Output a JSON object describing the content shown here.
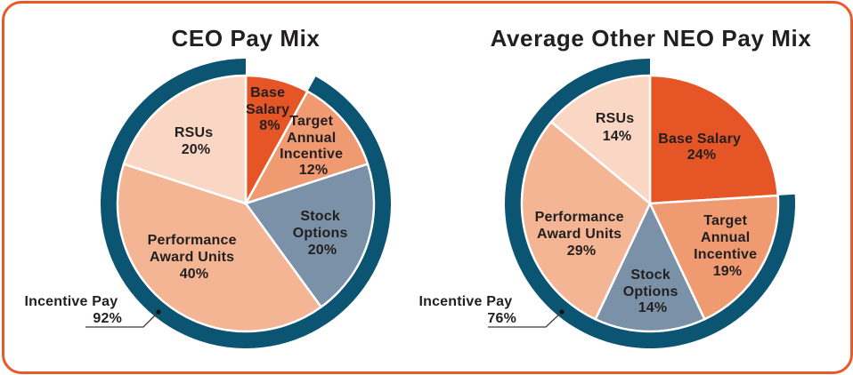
{
  "chart_data": [
    {
      "type": "pie",
      "title": "CEO Pay Mix",
      "categories": [
        "Base Salary",
        "Target Annual Incentive",
        "Stock Options",
        "Performance Award Units",
        "RSUs"
      ],
      "values": [
        8,
        12,
        20,
        40,
        20
      ],
      "unit": "%",
      "start_angle": "12 o'clock, clockwise",
      "annotations": [
        {
          "type": "outer-ring",
          "label": "Incentive Pay",
          "value": 92,
          "covers": [
            "Target Annual Incentive",
            "Stock Options",
            "Performance Award Units",
            "RSUs"
          ]
        }
      ]
    },
    {
      "type": "pie",
      "title": "Average Other NEO Pay Mix",
      "categories": [
        "Base Salary",
        "Target Annual Incentive",
        "Stock Options",
        "Performance Award Units",
        "RSUs"
      ],
      "values": [
        24,
        19,
        14,
        29,
        14
      ],
      "unit": "%",
      "start_angle": "12 o'clock, clockwise",
      "annotations": [
        {
          "type": "outer-ring",
          "label": "Incentive Pay",
          "value": 76,
          "covers": [
            "Target Annual Incentive",
            "Stock Options",
            "Performance Award Units",
            "RSUs"
          ]
        }
      ]
    }
  ],
  "colors": {
    "frame": "#e8592b",
    "ring": "#0b5472",
    "text": "#231f20",
    "slices": [
      "#e55526",
      "#ef9a70",
      "#7a91a7",
      "#f4b595",
      "#f9d7c4"
    ],
    "separator": "#ffffff"
  },
  "charts": [
    {
      "title": "CEO Pay Mix",
      "slices": [
        {
          "lines": [
            "Base",
            "Salary"
          ],
          "value": "8%"
        },
        {
          "lines": [
            "Target",
            "Annual",
            "Incentive"
          ],
          "value": "12%"
        },
        {
          "lines": [
            "Stock",
            "Options"
          ],
          "value": "20%"
        },
        {
          "lines": [
            "Performance",
            "Award Units"
          ],
          "value": "40%"
        },
        {
          "lines": [
            "RSUs"
          ],
          "value": "20%"
        }
      ],
      "callout": {
        "label": "Incentive Pay",
        "value": "92%"
      }
    },
    {
      "title": "Average Other NEO Pay Mix",
      "slices": [
        {
          "lines": [
            "Base Salary"
          ],
          "value": "24%"
        },
        {
          "lines": [
            "Target",
            "Annual",
            "Incentive"
          ],
          "value": "19%"
        },
        {
          "lines": [
            "Stock",
            "Options"
          ],
          "value": "14%"
        },
        {
          "lines": [
            "Performance",
            "Award Units"
          ],
          "value": "29%"
        },
        {
          "lines": [
            "RSUs"
          ],
          "value": "14%"
        }
      ],
      "callout": {
        "label": "Incentive Pay",
        "value": "76%"
      }
    }
  ]
}
